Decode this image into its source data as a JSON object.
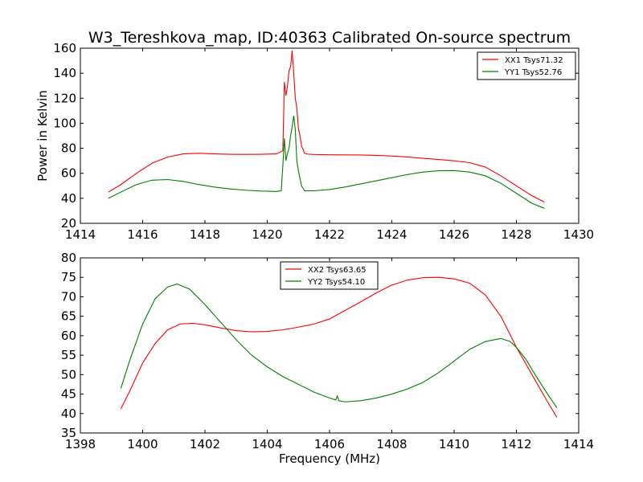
{
  "figure": {
    "title": "W3_Tereshkova_map, ID:40363 Calibrated On-source spectrum"
  },
  "chart_data": [
    {
      "type": "line",
      "ylabel": "Power in Kelvin",
      "xlabel": "",
      "xlim": [
        1414,
        1430
      ],
      "ylim": [
        20,
        160
      ],
      "xticks": [
        1414,
        1416,
        1418,
        1420,
        1422,
        1424,
        1426,
        1428,
        1430
      ],
      "yticks": [
        20,
        40,
        60,
        80,
        100,
        120,
        140,
        160
      ],
      "legend_position": "top-right",
      "series": [
        {
          "name": "XX1 Tsys71.32",
          "color": "#ff0000",
          "x": [
            1414.9,
            1415.3,
            1415.8,
            1416.3,
            1416.8,
            1417.3,
            1417.8,
            1418.3,
            1418.8,
            1419.3,
            1419.8,
            1420.3,
            1420.5,
            1420.55,
            1420.6,
            1420.65,
            1420.7,
            1420.75,
            1420.8,
            1420.85,
            1420.9,
            1420.95,
            1421.0,
            1421.05,
            1421.1,
            1421.2,
            1421.3,
            1421.5,
            1422.0,
            1422.5,
            1423.0,
            1423.5,
            1424.0,
            1424.5,
            1425.0,
            1425.5,
            1426.0,
            1426.5,
            1427.0,
            1427.5,
            1428.0,
            1428.5,
            1428.9
          ],
          "y": [
            45,
            51,
            60,
            68,
            73,
            75.5,
            76,
            75.5,
            75.2,
            75.1,
            75.2,
            75.5,
            78,
            133,
            122,
            130,
            142,
            145,
            158,
            140,
            120,
            112,
            96,
            90,
            82,
            76,
            75.3,
            75,
            74.8,
            74.7,
            74.6,
            74.3,
            73.8,
            73,
            72,
            71,
            70,
            68.5,
            65,
            58,
            50,
            42,
            37
          ]
        },
        {
          "name": "YY1 Tsys52.76",
          "color": "#008000",
          "x": [
            1414.9,
            1415.3,
            1415.8,
            1416.3,
            1416.8,
            1417.3,
            1417.8,
            1418.3,
            1418.8,
            1419.3,
            1419.8,
            1420.3,
            1420.45,
            1420.5,
            1420.55,
            1420.6,
            1420.65,
            1420.7,
            1420.75,
            1420.8,
            1420.85,
            1420.9,
            1420.95,
            1421.0,
            1421.1,
            1421.2,
            1421.5,
            1422.0,
            1422.5,
            1423.0,
            1423.5,
            1424.0,
            1424.5,
            1425.0,
            1425.5,
            1426.0,
            1426.5,
            1427.0,
            1427.5,
            1428.0,
            1428.5,
            1428.9
          ],
          "y": [
            40,
            45,
            51,
            54.5,
            55,
            53.5,
            51,
            49,
            47.5,
            46.5,
            45.8,
            45.5,
            46,
            66,
            88,
            70,
            76,
            80,
            90,
            97,
            106,
            95,
            70,
            62,
            50,
            46,
            46,
            47,
            49,
            51.5,
            54,
            56.5,
            59,
            61,
            62,
            62.2,
            61,
            58,
            52,
            44,
            36,
            32
          ]
        }
      ]
    },
    {
      "type": "line",
      "ylabel": "",
      "xlabel": "Frequency (MHz)",
      "xlim": [
        1398,
        1414
      ],
      "ylim": [
        35,
        80
      ],
      "xticks": [
        1398,
        1400,
        1402,
        1404,
        1406,
        1408,
        1410,
        1412,
        1414
      ],
      "yticks": [
        35,
        40,
        45,
        50,
        55,
        60,
        65,
        70,
        75,
        80
      ],
      "legend_position": "top-center",
      "series": [
        {
          "name": "XX2 Tsys63.65",
          "color": "#ff0000",
          "x": [
            1399.3,
            1399.6,
            1400.0,
            1400.4,
            1400.8,
            1401.2,
            1401.6,
            1402.0,
            1402.5,
            1403.0,
            1403.5,
            1404.0,
            1404.5,
            1405.0,
            1405.5,
            1406.0,
            1406.5,
            1407.0,
            1407.5,
            1408.0,
            1408.5,
            1409.0,
            1409.5,
            1410.0,
            1410.5,
            1411.0,
            1411.5,
            1412.0,
            1412.5,
            1413.0,
            1413.3
          ],
          "y": [
            41.2,
            46,
            53,
            58,
            61.5,
            63,
            63.2,
            62.8,
            62,
            61.3,
            61,
            61.1,
            61.5,
            62.2,
            63,
            64.3,
            66.5,
            68.7,
            71,
            73,
            74.3,
            74.9,
            75,
            74.6,
            73.5,
            70.5,
            65,
            57,
            50,
            43,
            39
          ]
        },
        {
          "name": "YY2 Tsys54.10",
          "color": "#008000",
          "x": [
            1399.3,
            1399.6,
            1400.0,
            1400.4,
            1400.8,
            1401.1,
            1401.5,
            1402.0,
            1402.5,
            1403.0,
            1403.5,
            1404.0,
            1404.5,
            1405.0,
            1405.5,
            1406.0,
            1406.2,
            1406.25,
            1406.3,
            1406.5,
            1407.0,
            1407.5,
            1408.0,
            1408.5,
            1409.0,
            1409.5,
            1410.0,
            1410.5,
            1411.0,
            1411.5,
            1411.8,
            1412.0,
            1412.3,
            1412.6,
            1413.0,
            1413.3
          ],
          "y": [
            46.5,
            54,
            63,
            69.5,
            72.5,
            73.3,
            72,
            68,
            63.5,
            59,
            55,
            52,
            49.5,
            47.5,
            45.5,
            44,
            43.5,
            44.5,
            43.3,
            43,
            43.3,
            44,
            45,
            46.3,
            48,
            50.5,
            53.5,
            56.5,
            58.5,
            59.3,
            58.5,
            57,
            54,
            50,
            45,
            41.5
          ]
        }
      ]
    }
  ]
}
